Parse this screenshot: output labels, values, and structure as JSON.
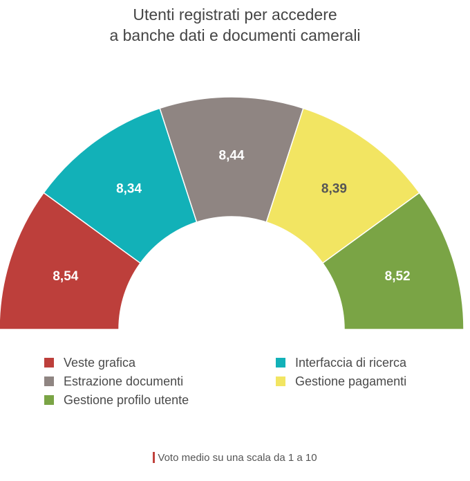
{
  "chart_data": {
    "type": "pie",
    "subtype": "half-donut",
    "title_lines": [
      "Utenti registrati per accedere",
      "a banche dati e documenti camerali"
    ],
    "categories": [
      "Veste grafica",
      "Interfaccia di ricerca",
      "Estrazione documenti",
      "Gestione pagamenti",
      "Gestione profilo utente"
    ],
    "values": [
      8.54,
      8.34,
      8.44,
      8.39,
      8.52
    ],
    "value_labels": [
      "8,54",
      "8,34",
      "8,44",
      "8,39",
      "8,52"
    ],
    "colors": [
      "#bd3f3b",
      "#12b1b8",
      "#8f8582",
      "#f2e562",
      "#7aa445"
    ],
    "label_colors": [
      "#ffffff",
      "#ffffff",
      "#ffffff",
      "#555555",
      "#ffffff"
    ],
    "footnote": "Voto medio su una scala da 1 a 10"
  },
  "legend": {
    "items": [
      {
        "label": "Veste grafica",
        "color": "#bd3f3b"
      },
      {
        "label": "Interfaccia di ricerca",
        "color": "#12b1b8"
      },
      {
        "label": "Estrazione documenti",
        "color": "#8f8582"
      },
      {
        "label": "Gestione pagamenti",
        "color": "#f2e562"
      },
      {
        "label": "Gestione profilo utente",
        "color": "#7aa445"
      }
    ]
  }
}
